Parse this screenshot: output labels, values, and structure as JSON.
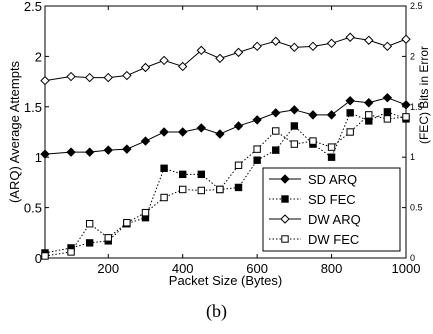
{
  "chart_data": {
    "type": "line",
    "xlabel": "Packet Size (Bytes)",
    "ylabel_left": "(ARQ) Average Attempts",
    "ylabel_right": "(FEC) Bits in Error",
    "xlim": [
      30,
      1000
    ],
    "ylim_left": [
      0,
      2.5
    ],
    "ylim_right": [
      0,
      2.5
    ],
    "x_ticks": [
      200,
      400,
      600,
      800,
      1000
    ],
    "y_ticks_left": [
      "0",
      "0.5",
      "1",
      "1.5",
      "2",
      "2.5"
    ],
    "y_ticks_right": [
      "0",
      "0.5",
      "1",
      "1.5",
      "2",
      "2.5"
    ],
    "legend_position": "bottom-right",
    "series": [
      {
        "name": "SD ARQ",
        "axis": "left",
        "line": "solid",
        "marker": "diamond-filled",
        "x": [
          30,
          100,
          150,
          200,
          250,
          300,
          350,
          400,
          450,
          500,
          550,
          600,
          650,
          700,
          750,
          800,
          850,
          900,
          950,
          1000
        ],
        "y": [
          1.03,
          1.05,
          1.05,
          1.07,
          1.08,
          1.16,
          1.25,
          1.25,
          1.29,
          1.23,
          1.31,
          1.37,
          1.44,
          1.47,
          1.42,
          1.42,
          1.56,
          1.54,
          1.59,
          1.52
        ]
      },
      {
        "name": "SD FEC",
        "axis": "right",
        "line": "dotted",
        "marker": "square-filled",
        "x": [
          30,
          100,
          150,
          200,
          250,
          300,
          350,
          400,
          450,
          500,
          550,
          600,
          650,
          700,
          750,
          800,
          850,
          900,
          950,
          1000
        ],
        "y": [
          0.05,
          0.1,
          0.15,
          0.17,
          0.34,
          0.4,
          0.89,
          0.83,
          0.83,
          0.68,
          0.7,
          0.97,
          1.07,
          1.31,
          1.13,
          1.0,
          1.44,
          1.36,
          1.45,
          1.38
        ]
      },
      {
        "name": "DW ARQ",
        "axis": "left",
        "line": "solid",
        "marker": "diamond-open",
        "x": [
          30,
          100,
          150,
          200,
          250,
          300,
          350,
          400,
          450,
          500,
          550,
          600,
          650,
          700,
          750,
          800,
          850,
          900,
          950,
          1000
        ],
        "y": [
          1.76,
          1.8,
          1.79,
          1.79,
          1.81,
          1.89,
          1.96,
          1.9,
          2.06,
          1.98,
          2.04,
          2.1,
          2.15,
          2.09,
          2.1,
          2.13,
          2.19,
          2.16,
          2.1,
          2.17
        ]
      },
      {
        "name": "DW FEC",
        "axis": "right",
        "line": "dotted",
        "marker": "square-open",
        "x": [
          30,
          100,
          150,
          200,
          250,
          300,
          350,
          400,
          450,
          500,
          550,
          600,
          650,
          700,
          750,
          800,
          850,
          900,
          950,
          1000
        ],
        "y": [
          0.02,
          0.06,
          0.34,
          0.2,
          0.35,
          0.45,
          0.6,
          0.68,
          0.67,
          0.68,
          0.92,
          1.08,
          1.26,
          1.13,
          1.16,
          1.1,
          1.25,
          1.42,
          1.38,
          1.4
        ]
      }
    ]
  },
  "caption": "(b)"
}
